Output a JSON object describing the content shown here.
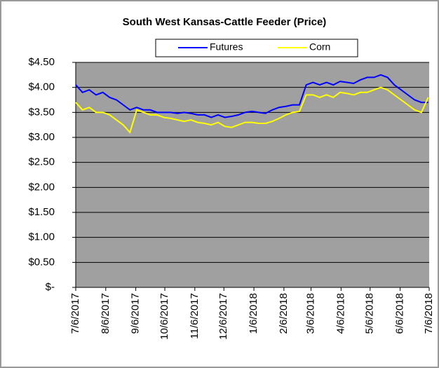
{
  "chart_data": {
    "type": "line",
    "title": "South West Kansas-Cattle Feeder (Price)",
    "x": [
      "7/6/2017",
      "7/13/2017",
      "7/20/2017",
      "7/27/2017",
      "8/3/2017",
      "8/10/2017",
      "8/17/2017",
      "8/24/2017",
      "8/31/2017",
      "9/7/2017",
      "9/14/2017",
      "9/21/2017",
      "9/28/2017",
      "10/5/2017",
      "10/12/2017",
      "10/19/2017",
      "10/26/2017",
      "11/2/2017",
      "11/9/2017",
      "11/16/2017",
      "11/23/2017",
      "11/30/2017",
      "12/7/2017",
      "12/14/2017",
      "12/21/2017",
      "12/28/2017",
      "1/4/2018",
      "1/11/2018",
      "1/18/2018",
      "1/25/2018",
      "2/1/2018",
      "2/8/2018",
      "2/15/2018",
      "2/22/2018",
      "3/1/2018",
      "3/8/2018",
      "3/15/2018",
      "3/22/2018",
      "3/29/2018",
      "4/5/2018",
      "4/12/2018",
      "4/19/2018",
      "4/26/2018",
      "5/3/2018",
      "5/10/2018",
      "5/17/2018",
      "5/24/2018",
      "5/31/2018",
      "6/7/2018",
      "6/14/2018",
      "6/21/2018",
      "6/28/2018",
      "7/5/2018"
    ],
    "series": [
      {
        "name": "Futures",
        "color": "#0000ff",
        "values": [
          4.05,
          3.9,
          3.95,
          3.85,
          3.9,
          3.8,
          3.75,
          3.65,
          3.55,
          3.6,
          3.55,
          3.55,
          3.5,
          3.5,
          3.5,
          3.48,
          3.5,
          3.48,
          3.45,
          3.45,
          3.4,
          3.45,
          3.4,
          3.42,
          3.45,
          3.5,
          3.52,
          3.5,
          3.48,
          3.55,
          3.6,
          3.62,
          3.65,
          3.65,
          4.05,
          4.1,
          4.05,
          4.1,
          4.05,
          4.12,
          4.1,
          4.08,
          4.15,
          4.2,
          4.2,
          4.25,
          4.2,
          4.05,
          3.95,
          3.85,
          3.75,
          3.7,
          3.7
        ]
      },
      {
        "name": "Corn",
        "color": "#ffff00",
        "values": [
          3.7,
          3.55,
          3.6,
          3.5,
          3.5,
          3.45,
          3.35,
          3.25,
          3.1,
          3.55,
          3.5,
          3.45,
          3.45,
          3.4,
          3.38,
          3.35,
          3.32,
          3.35,
          3.3,
          3.28,
          3.25,
          3.3,
          3.22,
          3.2,
          3.25,
          3.3,
          3.3,
          3.28,
          3.28,
          3.32,
          3.38,
          3.45,
          3.5,
          3.52,
          3.85,
          3.85,
          3.8,
          3.85,
          3.8,
          3.9,
          3.88,
          3.85,
          3.9,
          3.9,
          3.95,
          4.0,
          3.95,
          3.85,
          3.75,
          3.65,
          3.55,
          3.5,
          3.8
        ]
      }
    ],
    "xlim": [
      "7/6/2017",
      "7/6/2018"
    ],
    "xticks": [
      "7/6/2017",
      "8/6/2017",
      "9/6/2017",
      "10/6/2017",
      "11/6/2017",
      "12/6/2017",
      "1/6/2018",
      "2/6/2018",
      "3/6/2018",
      "4/6/2018",
      "5/6/2018",
      "6/6/2018",
      "7/6/2018"
    ],
    "ylim": [
      0,
      4.5
    ],
    "yticks": [
      {
        "value": 0,
        "label": "$-"
      },
      {
        "value": 0.5,
        "label": "$0.50"
      },
      {
        "value": 1,
        "label": "$1.00"
      },
      {
        "value": 1.5,
        "label": "$1.50"
      },
      {
        "value": 2,
        "label": "$2.00"
      },
      {
        "value": 2.5,
        "label": "$2.50"
      },
      {
        "value": 3,
        "label": "$3.00"
      },
      {
        "value": 3.5,
        "label": "$3.50"
      },
      {
        "value": 4,
        "label": "$4.00"
      },
      {
        "value": 4.5,
        "label": "$4.50"
      }
    ],
    "grid": true,
    "plot_background": "#a0a0a0",
    "legend": "top"
  }
}
